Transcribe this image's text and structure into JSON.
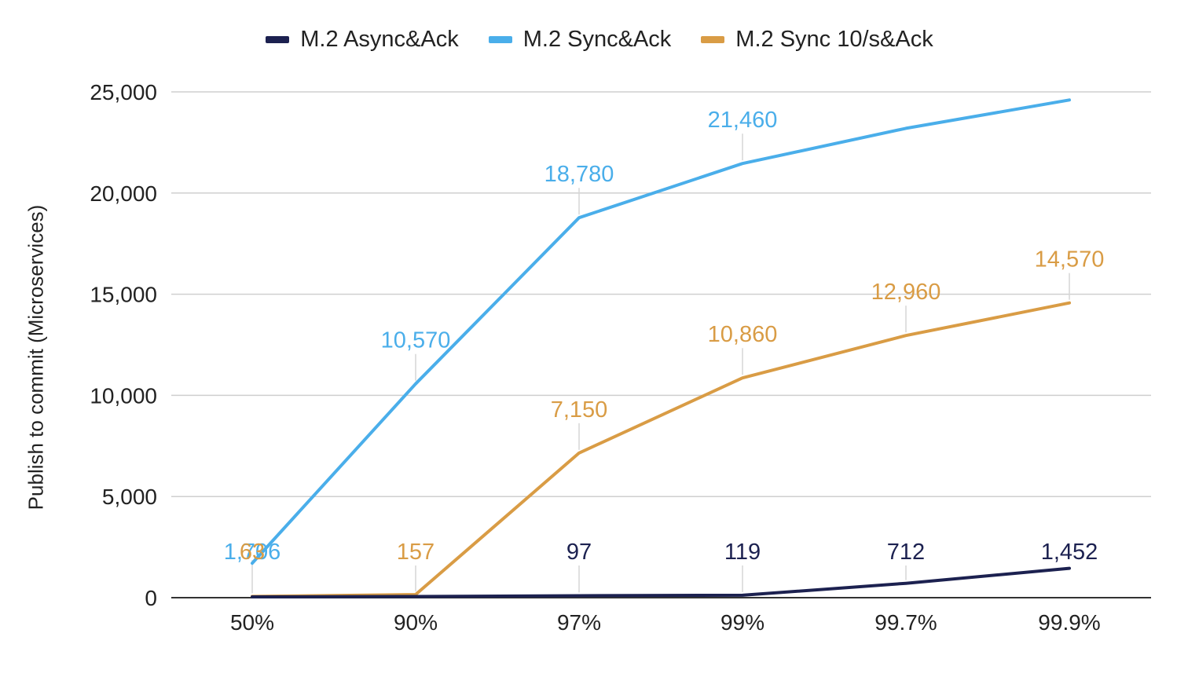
{
  "chart_data": {
    "type": "line",
    "title": "",
    "xlabel": "",
    "ylabel": "Publish to commit (Microservices)",
    "categories": [
      "50%",
      "90%",
      "97%",
      "99%",
      "99.7%",
      "99.9%"
    ],
    "ylim": [
      0,
      25000
    ],
    "yticks": [
      0,
      5000,
      10000,
      15000,
      20000,
      25000
    ],
    "ytick_labels": [
      "0",
      "5,000",
      "10,000",
      "15,000",
      "20,000",
      "25,000"
    ],
    "grid": true,
    "legend_position": "top-center",
    "series": [
      {
        "name": "M.2 Async&Ack",
        "color": "#1c2150",
        "values": [
          40,
          57,
          97,
          119,
          712,
          1452
        ],
        "labels": [
          "",
          "",
          "97",
          "119",
          "712",
          "1,452"
        ]
      },
      {
        "name": "M.2 Sync&Ack",
        "color": "#4aaeea",
        "values": [
          1706,
          10570,
          18780,
          21460,
          23200,
          24600
        ],
        "labels": [
          "1,706",
          "10,570",
          "18,780",
          "21,460",
          "",
          ""
        ]
      },
      {
        "name": "M.2 Sync 10/s&Ack",
        "color": "#d99c45",
        "values": [
          63,
          157,
          7150,
          10860,
          12960,
          14570
        ],
        "labels": [
          "63",
          "157",
          "7,150",
          "10,860",
          "12,960",
          "14,570"
        ]
      }
    ]
  }
}
